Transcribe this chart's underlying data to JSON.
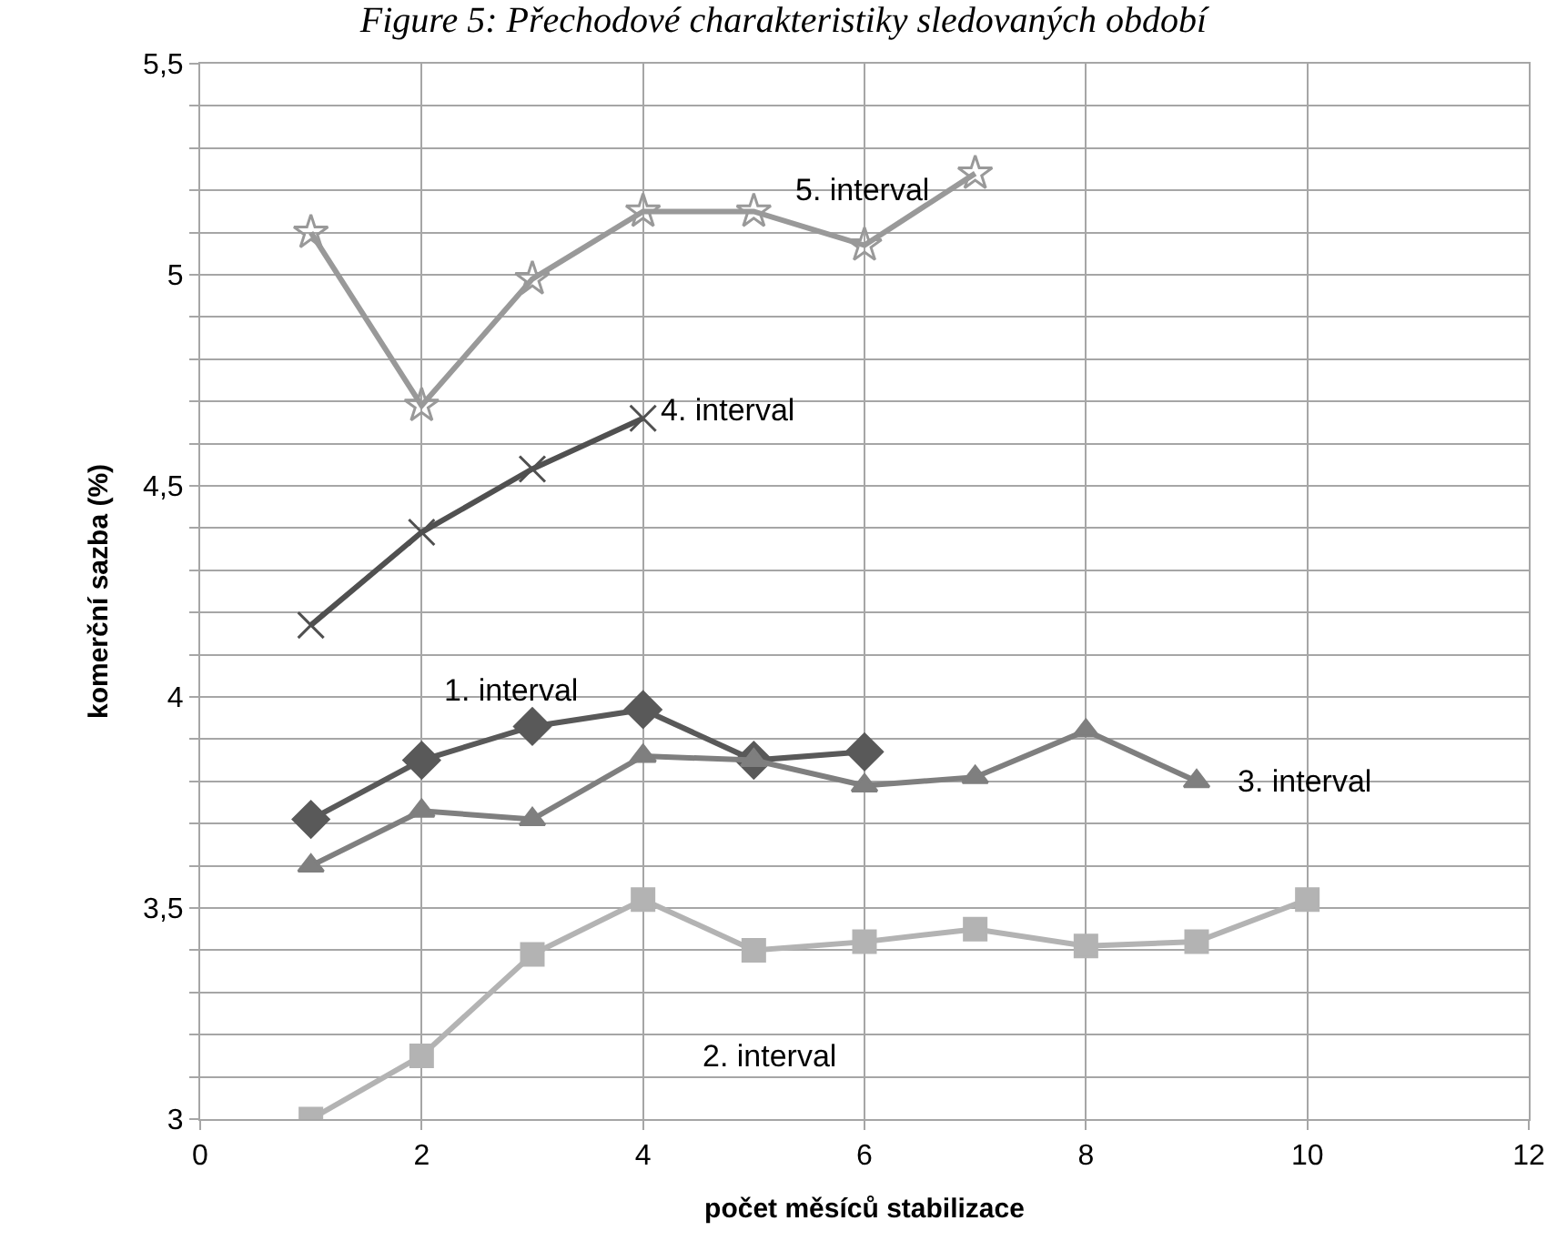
{
  "chart_data": {
    "type": "line",
    "title": "Figure 5: Přechodové charakteristiky sledovaných období",
    "xlabel": "počet měsíců stabilizace",
    "ylabel": "komerční sazba (%)",
    "xlim": [
      0,
      12
    ],
    "xticks": [
      0,
      2,
      4,
      6,
      8,
      10,
      12
    ],
    "ylim": [
      3,
      5.5
    ],
    "yticks": [
      3,
      {
        "value": 3.1,
        "label": null
      },
      {
        "value": 3.2,
        "label": null
      },
      {
        "value": 3.3,
        "label": null
      },
      {
        "value": 3.4,
        "label": null
      },
      {
        "value": 3.5,
        "label": "3,5"
      },
      {
        "value": 3.6,
        "label": null
      },
      {
        "value": 3.7,
        "label": null
      },
      {
        "value": 3.8,
        "label": null
      },
      {
        "value": 3.9,
        "label": null
      },
      4,
      {
        "value": 4.1,
        "label": null
      },
      {
        "value": 4.2,
        "label": null
      },
      {
        "value": 4.3,
        "label": null
      },
      {
        "value": 4.4,
        "label": null
      },
      {
        "value": 4.5,
        "label": "4,5"
      },
      {
        "value": 4.6,
        "label": null
      },
      {
        "value": 4.7,
        "label": null
      },
      {
        "value": 4.8,
        "label": null
      },
      {
        "value": 4.9,
        "label": null
      },
      5,
      {
        "value": 5.1,
        "label": null
      },
      {
        "value": 5.2,
        "label": null
      },
      {
        "value": 5.3,
        "label": null
      },
      {
        "value": 5.4,
        "label": null
      },
      {
        "value": 5.5,
        "label": "5,5"
      }
    ],
    "grid": true,
    "legend": false,
    "line_style": "solid",
    "series": [
      {
        "name": "1. interval",
        "color": "#595959",
        "marker": "diamond",
        "x": [
          1,
          2,
          3,
          4,
          5,
          6
        ],
        "values": [
          3.71,
          3.85,
          3.93,
          3.97,
          3.85,
          3.87
        ]
      },
      {
        "name": "2. interval",
        "color": "#b3b3b3",
        "marker": "square",
        "x": [
          1,
          2,
          3,
          4,
          5,
          6,
          7,
          8,
          9,
          10
        ],
        "values": [
          3.0,
          3.15,
          3.39,
          3.52,
          3.4,
          3.42,
          3.45,
          3.41,
          3.42,
          3.52
        ]
      },
      {
        "name": "3. interval",
        "color": "#7f7f7f",
        "marker": "triangle",
        "x": [
          1,
          2,
          3,
          4,
          5,
          6,
          7,
          8,
          9
        ],
        "values": [
          3.6,
          3.73,
          3.71,
          3.86,
          3.85,
          3.79,
          3.81,
          3.92,
          3.8
        ]
      },
      {
        "name": "4. interval",
        "color": "#505050",
        "marker": "cross",
        "x": [
          1,
          2,
          3,
          4
        ],
        "values": [
          4.17,
          4.39,
          4.54,
          4.66
        ]
      },
      {
        "name": "5. interval",
        "color": "#999999",
        "marker": "star",
        "x": [
          1,
          2,
          3,
          4,
          5,
          6,
          7
        ],
        "values": [
          5.1,
          4.69,
          4.99,
          5.15,
          5.15,
          5.07,
          5.24
        ]
      }
    ]
  }
}
